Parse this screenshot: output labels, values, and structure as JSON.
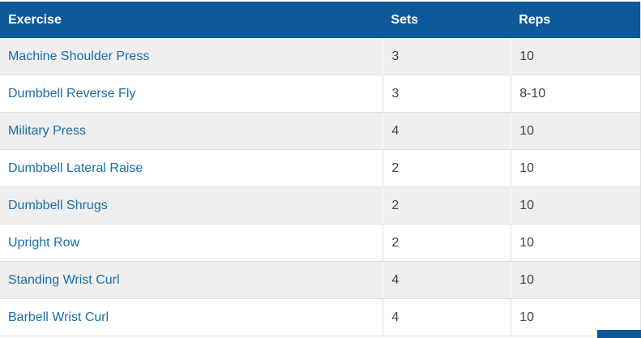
{
  "table": {
    "columns": [
      "Exercise",
      "Sets",
      "Reps"
    ],
    "rows": [
      {
        "exercise": "Machine Shoulder Press",
        "sets": "3",
        "reps": "10"
      },
      {
        "exercise": "Dumbbell Reverse Fly",
        "sets": "3",
        "reps": "8-10"
      },
      {
        "exercise": "Military Press",
        "sets": "4",
        "reps": "10"
      },
      {
        "exercise": "Dumbbell Lateral Raise",
        "sets": "2",
        "reps": "10"
      },
      {
        "exercise": "Dumbbell Shrugs",
        "sets": "2",
        "reps": "10"
      },
      {
        "exercise": "Upright Row",
        "sets": "2",
        "reps": "10"
      },
      {
        "exercise": "Standing Wrist Curl",
        "sets": "4",
        "reps": "10"
      },
      {
        "exercise": "Barbell Wrist Curl",
        "sets": "4",
        "reps": "10"
      }
    ]
  },
  "colors": {
    "header_bg": "#0E599A",
    "header_text": "#FFFFFF",
    "link_text": "#1A6DA7",
    "row_alt_bg": "#EFEFEF",
    "cell_text": "#3F4246",
    "border": "#E0E0E0",
    "corner_accent": "#0E599A"
  }
}
